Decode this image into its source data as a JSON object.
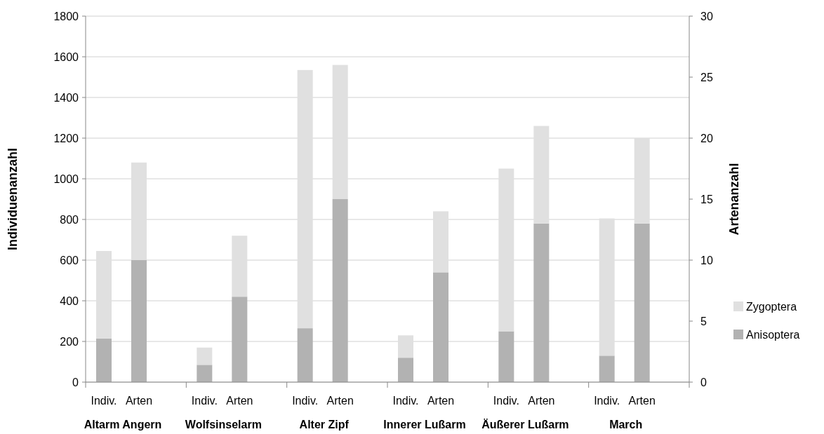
{
  "chart_data": {
    "type": "bar",
    "stacked": true,
    "ylabel": "Individuenanzahl",
    "y2label": "Artenanzahl",
    "categories": [
      "Indiv.",
      "Arten",
      "Indiv.",
      "Arten",
      "Indiv.",
      "Arten",
      "Indiv.",
      "Arten",
      "Indiv.",
      "Arten",
      "Indiv.",
      "Arten"
    ],
    "annotations": [
      "Altarm Angern",
      "Wolfsinselarm",
      "Alter Zipf",
      "Innerer Lußarm",
      "Äußerer Lußarm",
      "March"
    ],
    "series": [
      {
        "name": "Anisoptera",
        "color": "#b2b2b2",
        "values": [
          215,
          null,
          85,
          null,
          265,
          null,
          120,
          null,
          250,
          null,
          130,
          null
        ]
      },
      {
        "name": "Zygoptera",
        "color": "#e0e0e0",
        "values": [
          430,
          null,
          85,
          null,
          1270,
          null,
          110,
          null,
          800,
          null,
          675,
          null
        ]
      },
      {
        "color": "#b2b2b2",
        "axis": "y2",
        "values": [
          null,
          10,
          null,
          7,
          null,
          15,
          null,
          9,
          null,
          13,
          null,
          13
        ]
      },
      {
        "color": "#e0e0e0",
        "axis": "y2",
        "values": [
          null,
          8,
          null,
          5,
          null,
          11,
          null,
          5,
          null,
          8,
          null,
          7
        ]
      }
    ],
    "ylim": [
      0,
      1800
    ],
    "yticks": [
      0,
      200,
      400,
      600,
      800,
      1000,
      1200,
      1400,
      1600,
      1800
    ],
    "y2lim": [
      0,
      30
    ],
    "y2ticks": [
      0,
      5,
      10,
      15,
      20,
      25,
      30
    ],
    "grid": "y",
    "legend": "right"
  }
}
